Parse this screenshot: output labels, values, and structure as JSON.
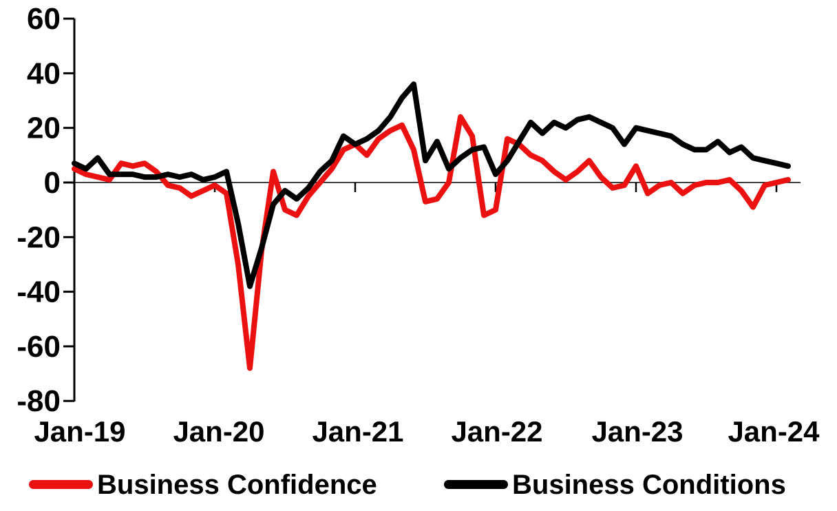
{
  "chart_data": {
    "type": "line",
    "title": "",
    "xlabel": "",
    "ylabel": "",
    "ylim": [
      -80,
      60
    ],
    "grid": false,
    "legend_position": "bottom",
    "axis_color": "#000000",
    "zero_line": true,
    "y_ticks": [
      60,
      40,
      20,
      0,
      -20,
      -40,
      -60,
      -80
    ],
    "y_tick_labels": [
      "60",
      "40",
      "20",
      "0",
      "-20",
      "-40",
      "-60",
      "-80"
    ],
    "x_tick_labels": [
      "Jan-19",
      "Jan-20",
      "Jan-21",
      "Jan-22",
      "Jan-23",
      "Jan-24"
    ],
    "x": [
      "Jan-19",
      "Feb-19",
      "Mar-19",
      "Apr-19",
      "May-19",
      "Jun-19",
      "Jul-19",
      "Aug-19",
      "Sep-19",
      "Oct-19",
      "Nov-19",
      "Dec-19",
      "Jan-20",
      "Feb-20",
      "Mar-20",
      "Apr-20",
      "May-20",
      "Jun-20",
      "Jul-20",
      "Aug-20",
      "Sep-20",
      "Oct-20",
      "Nov-20",
      "Dec-20",
      "Jan-21",
      "Feb-21",
      "Mar-21",
      "Apr-21",
      "May-21",
      "Jun-21",
      "Jul-21",
      "Aug-21",
      "Sep-21",
      "Oct-21",
      "Nov-21",
      "Dec-21",
      "Jan-22",
      "Feb-22",
      "Mar-22",
      "Apr-22",
      "May-22",
      "Jun-22",
      "Jul-22",
      "Aug-22",
      "Sep-22",
      "Oct-22",
      "Nov-22",
      "Dec-22",
      "Jan-23",
      "Feb-23",
      "Mar-23",
      "Apr-23",
      "May-23",
      "Jun-23",
      "Jul-23",
      "Aug-23",
      "Sep-23",
      "Oct-23",
      "Nov-23",
      "Dec-23",
      "Jan-24",
      "Feb-24"
    ],
    "series": [
      {
        "name": "Business Confidence",
        "color": "#ec1111",
        "values": [
          5,
          3,
          2,
          1,
          7,
          6,
          7,
          4,
          -1,
          -2,
          -5,
          -3,
          -1,
          -4,
          -30,
          -68,
          -25,
          4,
          -10,
          -12,
          -5,
          0,
          5,
          12,
          14,
          10,
          16,
          19,
          21,
          12,
          -7,
          -6,
          0,
          24,
          17,
          -12,
          -10,
          16,
          14,
          10,
          8,
          4,
          1,
          4,
          8,
          2,
          -2,
          -1,
          6,
          -4,
          -1,
          0,
          -4,
          -1,
          0,
          0,
          1,
          -3,
          -9,
          -1,
          0,
          1
        ]
      },
      {
        "name": "Business Conditions",
        "color": "#000000",
        "values": [
          7,
          5,
          9,
          3,
          3,
          3,
          2,
          2,
          3,
          2,
          3,
          1,
          2,
          4,
          -15,
          -38,
          -24,
          -8,
          -3,
          -6,
          -2,
          4,
          8,
          17,
          14,
          16,
          19,
          24,
          31,
          36,
          8,
          15,
          5,
          9,
          12,
          13,
          3,
          8,
          15,
          22,
          18,
          22,
          20,
          23,
          24,
          22,
          20,
          14,
          20,
          19,
          18,
          17,
          14,
          12,
          12,
          15,
          11,
          13,
          9,
          8,
          7,
          6
        ]
      }
    ]
  }
}
